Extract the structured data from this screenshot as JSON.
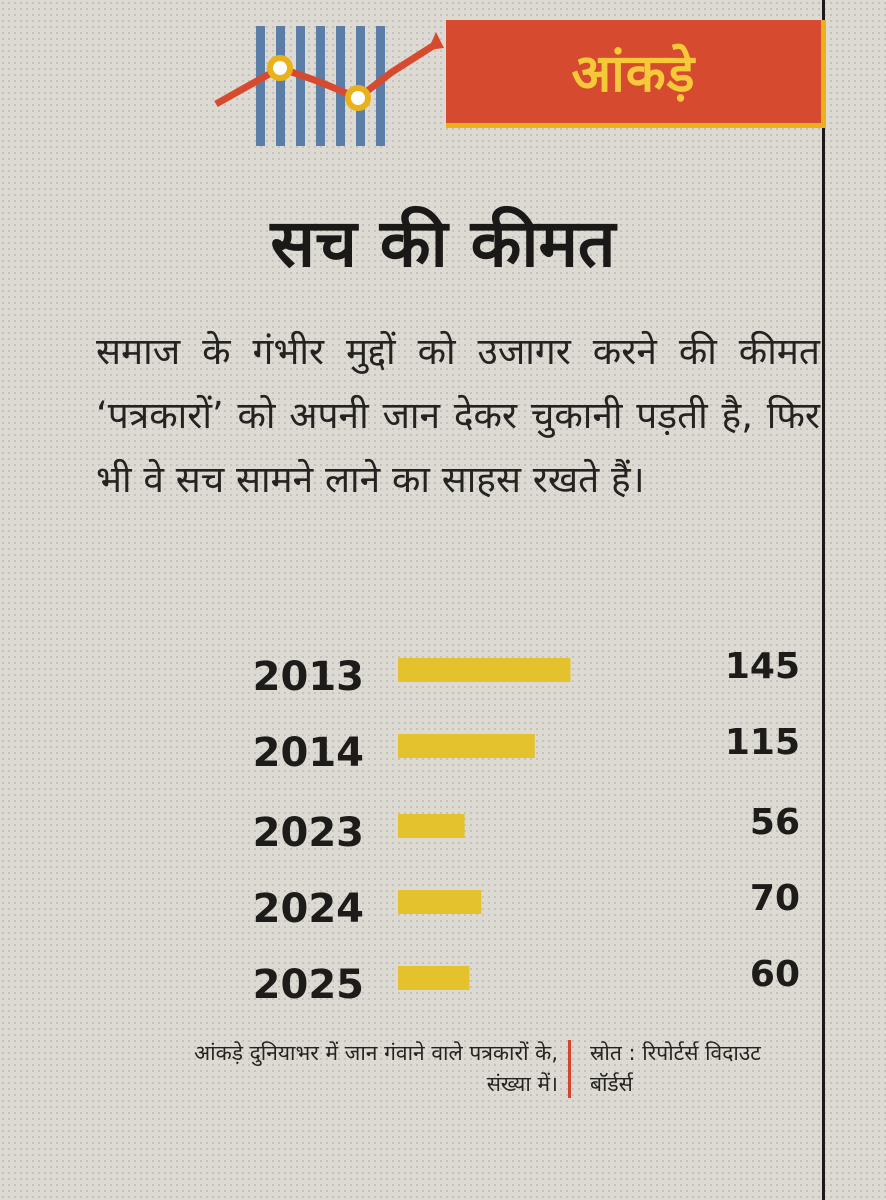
{
  "header": {
    "tag": "आंकड़े",
    "icon": "trend-chart-icon",
    "colors": {
      "tag_bg": "#d64a2f",
      "tag_text": "#f5c93a",
      "accent_yellow": "#e9b21a"
    }
  },
  "headline": "सच की कीमत",
  "intro": "समाज के गंभीर मुद्दों को उजागर करने की कीमत ‘पत्रकारों’ को अपनी जान देकर चुकानी पड़ती है, फिर भी वे सच सामने लाने का साहस रखते हैं।",
  "chart_data": {
    "type": "bar",
    "orientation": "horizontal",
    "categories": [
      "2013",
      "2014",
      "2023",
      "2024",
      "2025"
    ],
    "values": [
      145,
      115,
      56,
      70,
      60
    ],
    "bar_color": "#e3c22e"
  },
  "footnote": "आंकड़े दुनियाभर में जान गंवाने वाले पत्रकारों के, संख्या में।",
  "source": "स्रोत : रिपोर्टर्स विदाउट बॉर्डर्स"
}
